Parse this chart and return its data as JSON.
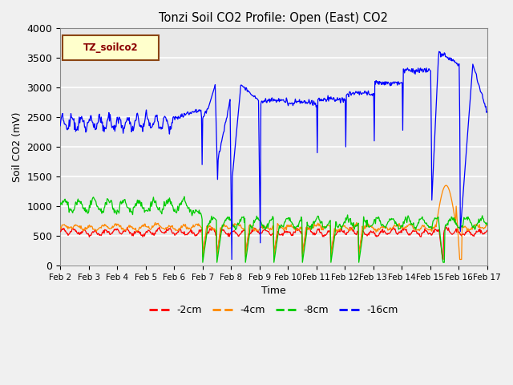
{
  "title": "Tonzi Soil CO2 Profile: Open (East) CO2",
  "xlabel": "Time",
  "ylabel": "Soil CO2 (mV)",
  "ylim": [
    0,
    4000
  ],
  "bg_color": "#e8e8e8",
  "grid_color": "#ffffff",
  "fig_bg": "#f0f0f0",
  "label_box_text": "TZ_soilco2",
  "label_box_bg": "#ffffcc",
  "label_box_edge": "#8b4513",
  "label_box_text_color": "#8b0000",
  "line_colors": {
    "m2cm": "#ff0000",
    "m4cm": "#ff8800",
    "m8cm": "#00cc00",
    "m16cm": "#0000ff"
  },
  "legend_labels": [
    "-2cm",
    "-4cm",
    "-8cm",
    "-16cm"
  ],
  "xtick_labels": [
    "Feb 2",
    "Feb 3",
    "Feb 4",
    "Feb 5",
    "Feb 6",
    "Feb 7",
    "Feb 8",
    "Feb 9",
    "Feb 10",
    "Feb 11",
    "Feb 12",
    "Feb 13",
    "Feb 14",
    "Feb 15",
    "Feb 16",
    "Feb 17"
  ],
  "yticks": [
    0,
    500,
    1000,
    1500,
    2000,
    2500,
    3000,
    3500,
    4000
  ]
}
